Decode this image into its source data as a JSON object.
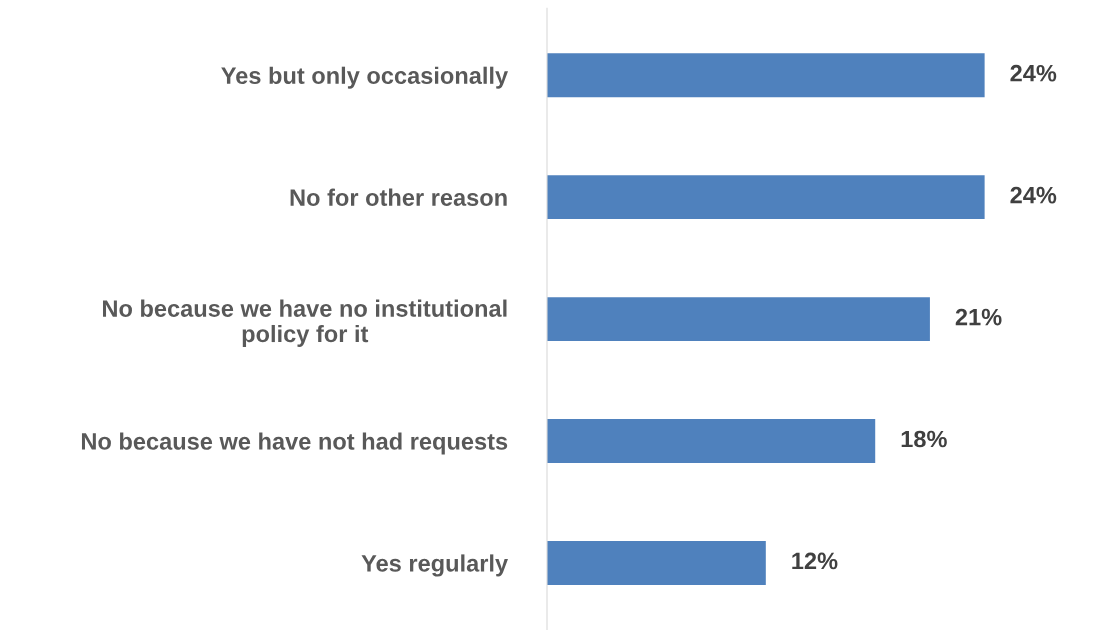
{
  "chart_data": {
    "type": "bar",
    "orientation": "horizontal",
    "categories": [
      "Yes but only occasionally",
      "No for other reason",
      "No because we have no institutional\npolicy for it",
      "No because we have not had requests",
      "Yes regularly"
    ],
    "values": [
      24,
      24,
      21,
      18,
      12
    ],
    "value_labels": [
      "24%",
      "24%",
      "21%",
      "18%",
      "12%"
    ],
    "color": "#4f81bd",
    "grid": false,
    "legend": false
  }
}
